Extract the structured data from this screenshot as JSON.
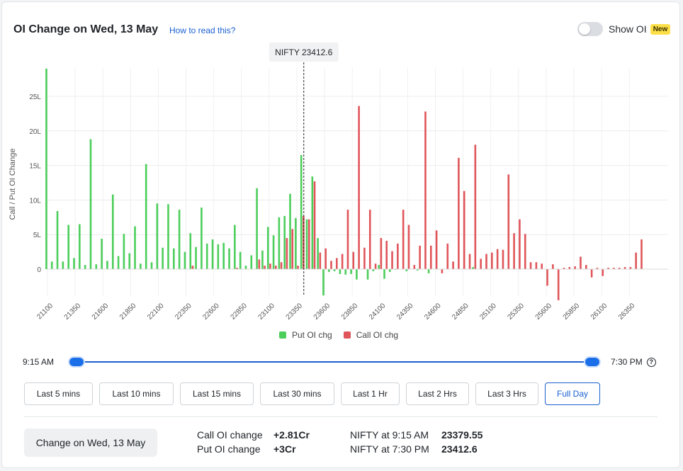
{
  "header": {
    "title": "OI Change on Wed, 13 May",
    "how_to": "How to read this?",
    "toggle_label": "Show OI",
    "new_badge": "New"
  },
  "chart_data": {
    "type": "bar",
    "ylabel": "Call / Put OI Change",
    "y_ticks": [
      "0",
      "5L",
      "10L",
      "15L",
      "20L",
      "25L"
    ],
    "y_unit": "lakh",
    "ylim": [
      -4.5,
      29
    ],
    "x_tick_labels": [
      "21100",
      "21350",
      "21600",
      "21850",
      "22100",
      "22350",
      "22600",
      "22850",
      "23100",
      "23350",
      "23600",
      "23850",
      "24100",
      "24350",
      "24600",
      "24850",
      "25100",
      "25350",
      "25600",
      "25850",
      "26100",
      "26350"
    ],
    "strike_start": 21100,
    "strike_step": 50,
    "spot_label": "NIFTY 23412.6",
    "spot_value": 23412.6,
    "legend": [
      {
        "name": "Put OI chg",
        "color": "#4cce5b"
      },
      {
        "name": "Call OI chg",
        "color": "#e0555a"
      }
    ],
    "series": [
      {
        "name": "Put OI chg",
        "color": "#4cce5b",
        "values": [
          29,
          1.1,
          8.4,
          1.1,
          6.4,
          1.6,
          6.5,
          0.6,
          18.8,
          0.7,
          4.4,
          1.2,
          10.8,
          1.9,
          5.1,
          2.3,
          6.2,
          0.8,
          15.2,
          1.0,
          9.5,
          3.1,
          9.4,
          3.0,
          8.6,
          2.5,
          5.2,
          3.2,
          8.9,
          3.7,
          4.3,
          3.6,
          3.8,
          3.0,
          6.4,
          2.5,
          0.5,
          2.0,
          11.7,
          2.7,
          6.1,
          4.9,
          7.5,
          7.7,
          10.9,
          7.4,
          16.5,
          7.2,
          13.4,
          4.5,
          -3.8,
          -0.4,
          -0.3,
          -0.7,
          -0.8,
          -0.7,
          -1.5,
          0.0,
          -1.5,
          -0.3,
          0.6,
          -1.4,
          -0.4,
          -0.1,
          0.0,
          -0.3,
          0.0,
          -0.2,
          0.0,
          -0.6,
          0.0,
          0.0,
          0.0,
          0.0,
          0.0,
          0.0,
          0.0,
          0.3,
          0.0,
          0.0,
          0.0,
          0.0,
          0.0,
          0.0,
          0.0,
          0.0,
          0.0,
          0.0,
          0.0,
          0.0,
          0.0,
          0.0,
          0.0,
          0.0,
          0.0,
          0.0,
          0.0,
          0.0,
          0.0,
          0.0,
          0.0,
          0.0,
          0.0,
          0.0,
          0.0,
          0.0,
          0.0,
          0.0,
          0.0,
          0.0,
          0.0,
          0.0,
          0.0
        ]
      },
      {
        "name": "Call OI chg",
        "color": "#e0555a",
        "values": [
          0,
          0,
          0,
          0,
          0,
          0,
          0,
          0,
          0,
          0,
          0,
          0,
          0,
          0,
          0,
          0,
          0,
          0,
          0,
          0,
          0,
          0,
          0,
          0,
          0,
          0,
          0.5,
          0,
          0,
          0,
          0,
          0,
          0,
          0,
          0.2,
          0,
          0,
          0,
          1.4,
          0.5,
          0.8,
          0.5,
          1.0,
          4.5,
          5.8,
          0.5,
          7.7,
          7.2,
          12.7,
          2.4,
          3.0,
          1.2,
          1.6,
          2.2,
          8.6,
          2.5,
          23.6,
          3.1,
          8.6,
          0.8,
          4.5,
          4.1,
          2.6,
          3.7,
          8.6,
          6.4,
          0.6,
          3.4,
          22.8,
          3.4,
          5.6,
          -0.6,
          3.7,
          1.1,
          16.1,
          11.3,
          2.2,
          18.0,
          1.5,
          2.2,
          2.4,
          2.9,
          2.8,
          13.7,
          5.2,
          7.2,
          5.1,
          1.0,
          1.0,
          0.8,
          -2.4,
          0.7,
          -4.5,
          0.2,
          0.3,
          0.4,
          1.8,
          0.6,
          -1.2,
          0.2,
          -1.0,
          0.2,
          0.2,
          0.2,
          0.3,
          0.3,
          2.4,
          4.3
        ]
      }
    ]
  },
  "slider": {
    "start_label": "9:15 AM",
    "end_label": "7:30 PM",
    "help_icon": "question-circle-icon"
  },
  "range_buttons": [
    {
      "label": "Last 5 mins",
      "active": false
    },
    {
      "label": "Last 10 mins",
      "active": false
    },
    {
      "label": "Last 15 mins",
      "active": false
    },
    {
      "label": "Last 30 mins",
      "active": false
    },
    {
      "label": "Last 1 Hr",
      "active": false
    },
    {
      "label": "Last 2 Hrs",
      "active": false
    },
    {
      "label": "Last 3 Hrs",
      "active": false
    },
    {
      "label": "Full Day",
      "active": true
    }
  ],
  "summary": {
    "button_label": "Change on Wed, 13 May",
    "call_oi_label": "Call OI change",
    "call_oi_value": "+2.81Cr",
    "put_oi_label": "Put OI change",
    "put_oi_value": "+3Cr",
    "nifty_start_label": "NIFTY at 9:15 AM",
    "nifty_start_value": "23379.55",
    "nifty_end_label": "NIFTY at 7:30 PM",
    "nifty_end_value": "23412.6"
  }
}
